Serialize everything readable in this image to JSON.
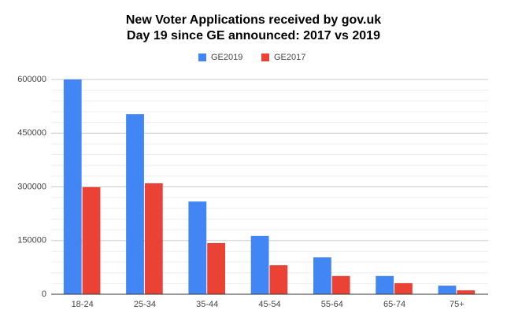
{
  "chart_data": {
    "type": "bar",
    "title": "New Voter Applications received by gov.uk",
    "subtitle": "Day 19 since GE announced: 2017 vs 2019",
    "categories": [
      "18-24",
      "25-34",
      "35-44",
      "45-54",
      "55-64",
      "65-74",
      "75+"
    ],
    "series": [
      {
        "name": "GE2019",
        "color": "#4285f4",
        "values": [
          600000,
          503000,
          259000,
          163000,
          103000,
          51000,
          24000
        ]
      },
      {
        "name": "GE2017",
        "color": "#ea4335",
        "values": [
          299000,
          310000,
          143000,
          81000,
          51000,
          31000,
          11000
        ]
      }
    ],
    "ylim": [
      0,
      600000
    ],
    "yticks": [
      0,
      150000,
      300000,
      450000,
      600000
    ],
    "grid": true,
    "minor_grid_per_major": 4,
    "legend": "top"
  }
}
